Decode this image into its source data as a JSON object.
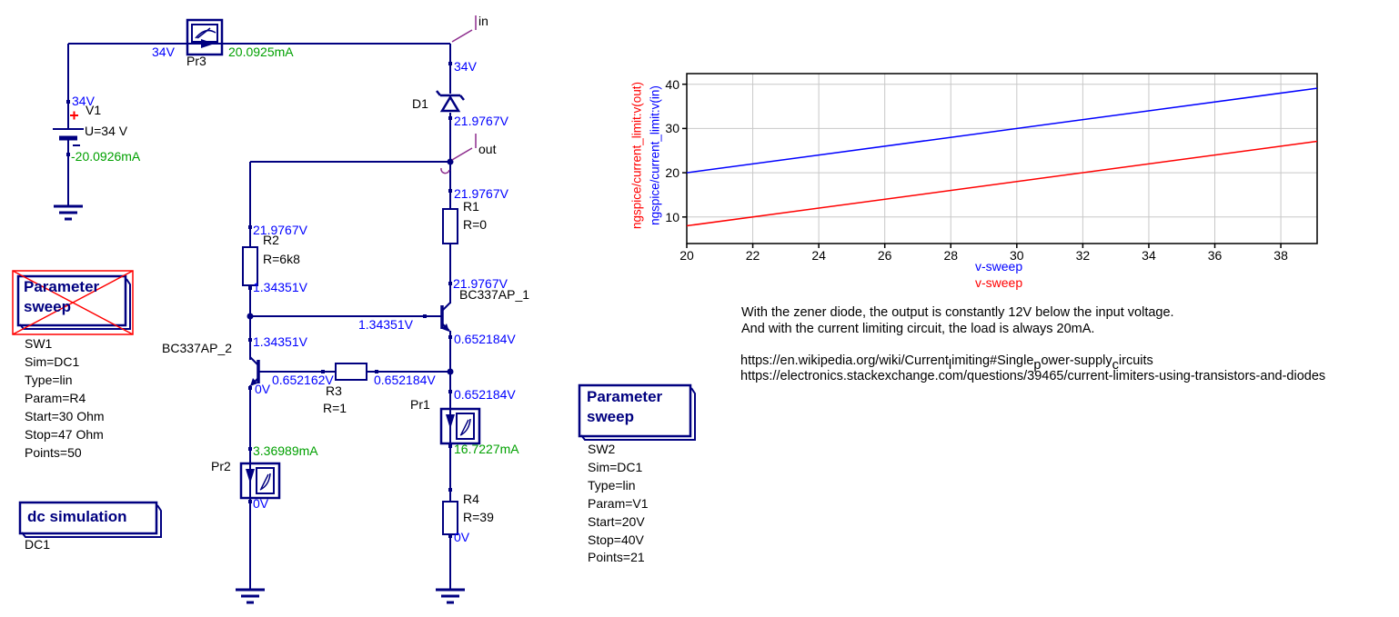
{
  "schematic": {
    "source": {
      "name": "V1",
      "value": "U=34 V",
      "v_node": "34V",
      "current": "-20.0926mA"
    },
    "pr3": {
      "name": "Pr3",
      "v_left": "34V",
      "current": "20.0925mA"
    },
    "nodes": {
      "in": "in",
      "out": "out"
    },
    "d1": {
      "name": "D1"
    },
    "voltages": {
      "v34": "34V",
      "v219": "21.9767V",
      "v134": "1.34351V",
      "v0652184": "0.652184V",
      "v0652162": "0.652162V",
      "v0": "0V"
    },
    "r1": {
      "name": "R1",
      "value": "R=0"
    },
    "r2": {
      "name": "R2",
      "value": "R=6k8"
    },
    "r3": {
      "name": "R3",
      "value": "R=1"
    },
    "r4": {
      "name": "R4",
      "value": "R=39"
    },
    "bc1": {
      "name": "BC337AP_1"
    },
    "bc2": {
      "name": "BC337AP_2"
    },
    "pr1": {
      "name": "Pr1",
      "current": "16.7227mA"
    },
    "pr2": {
      "name": "Pr2",
      "current": "3.36989mA"
    }
  },
  "sweep1": {
    "title_line1": "Parameter",
    "title_line2": "sweep",
    "name": "SW1",
    "disabled": true,
    "params": [
      "Sim=DC1",
      "Type=lin",
      "Param=R4",
      "Start=30 Ohm",
      "Stop=47 Ohm",
      "Points=50"
    ]
  },
  "sweep2": {
    "title_line1": "Parameter",
    "title_line2": "sweep",
    "name": "SW2",
    "disabled": false,
    "params": [
      "Sim=DC1",
      "Type=lin",
      "Param=V1",
      "Start=20V",
      "Stop=40V",
      "Points=21"
    ]
  },
  "dcsim": {
    "title": "dc simulation",
    "name": "DC1"
  },
  "chart_data": {
    "type": "line",
    "title": "",
    "x_ticks": [
      20,
      22,
      24,
      26,
      28,
      30,
      32,
      34,
      36,
      38
    ],
    "y_ticks": [
      10,
      20,
      30,
      40
    ],
    "xlim": [
      20,
      39.1
    ],
    "ylim": [
      4,
      42.4
    ],
    "grid": true,
    "grid_color": "#c8c8c8",
    "legend_position": "axis-labels",
    "ylabels": [
      {
        "label": "ngspice/current_limit:v(out)",
        "color": "#ff0000"
      },
      {
        "label": "ngspice/current_limit:v(in)",
        "color": "#0000ff"
      }
    ],
    "xlabel_series": [
      {
        "label": "v-sweep",
        "color": "#0000ff"
      },
      {
        "label": "v-sweep",
        "color": "#ff0000"
      }
    ],
    "series": [
      {
        "name": "ngspice/current_limit:v(in)",
        "color": "#0000ff",
        "x": [
          20,
          39.1
        ],
        "y": [
          20,
          39.1
        ]
      },
      {
        "name": "ngspice/current_limit:v(out)",
        "color": "#ff0000",
        "x": [
          20,
          39.1
        ],
        "y": [
          8,
          27.1
        ]
      }
    ]
  },
  "notes": {
    "line1": "With the zener diode, the output is constantly 12V below the input voltage.",
    "line2": "And with the current limiting circuit, the load is always 20mA.",
    "link1_segments": [
      {
        "t": "https://en.wikipedia.org/wiki/Current"
      },
      {
        "t": "l",
        "sub": true
      },
      {
        "t": "imiting#Single"
      },
      {
        "t": "p",
        "sub": true
      },
      {
        "t": "ower-supply"
      },
      {
        "t": "c",
        "sub": true
      },
      {
        "t": "ircuits"
      }
    ],
    "link2": "https://electronics.stackexchange.com/questions/39465/current-limiters-using-transistors-and-diodes"
  },
  "colors": {
    "wire": "#000080",
    "voltage_text": "#0000ff",
    "current_text": "#00a000",
    "node_label_marker": "#8d2d8d",
    "disabled_cross": "#ff0000",
    "axis": "#000000"
  }
}
